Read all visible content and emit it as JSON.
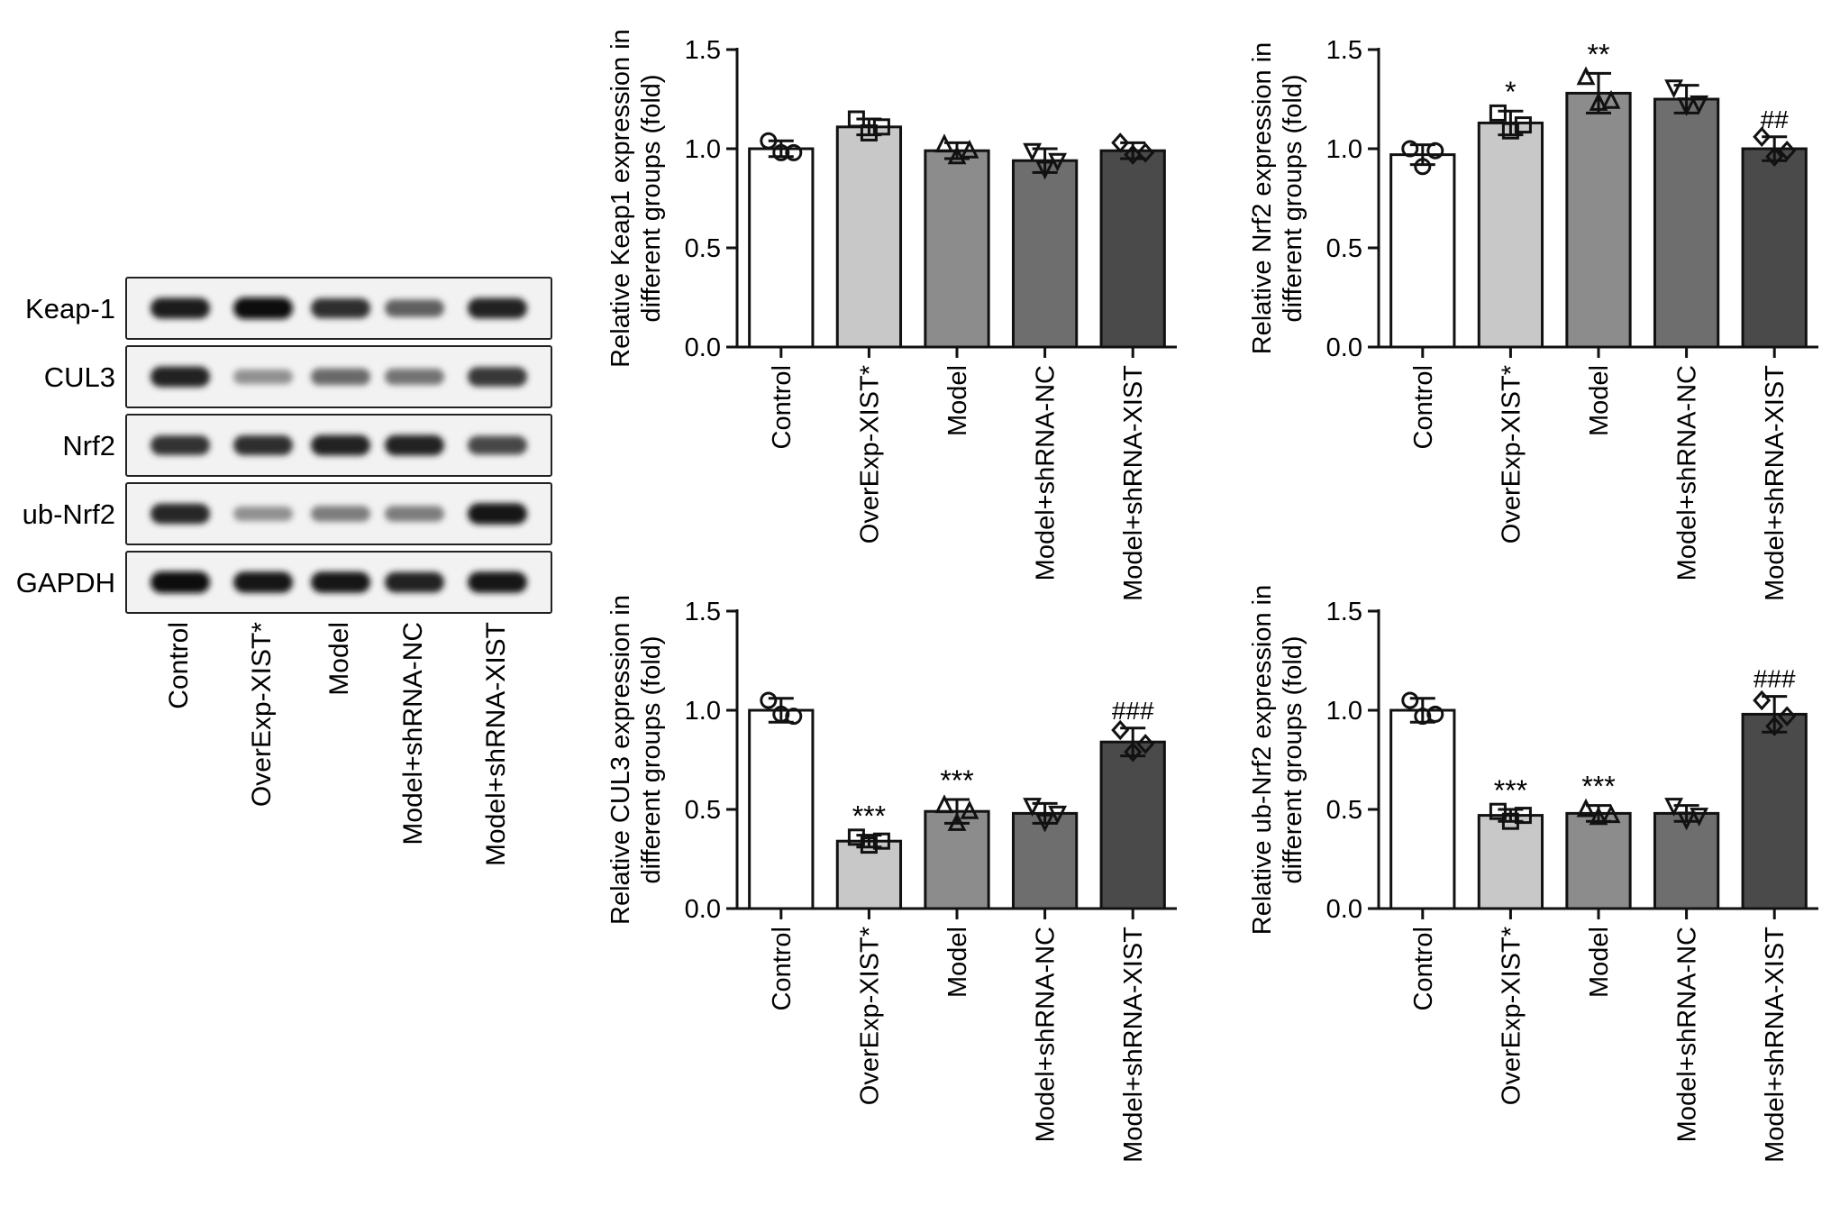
{
  "blot": {
    "bands": [
      {
        "label": "Keap-1",
        "intensities": [
          0.92,
          1.0,
          0.84,
          0.6,
          0.9
        ]
      },
      {
        "label": "CUL3",
        "intensities": [
          0.9,
          0.35,
          0.55,
          0.5,
          0.8
        ]
      },
      {
        "label": "Nrf2",
        "intensities": [
          0.82,
          0.84,
          0.9,
          0.9,
          0.72
        ]
      },
      {
        "label": "ub-Nrf2",
        "intensities": [
          0.88,
          0.35,
          0.45,
          0.45,
          0.95
        ]
      },
      {
        "label": "GAPDH",
        "intensities": [
          1.0,
          0.95,
          0.95,
          0.9,
          0.95
        ]
      }
    ],
    "lanes": [
      "Control",
      "OverExp-XIST*",
      "Model",
      "Model+shRNA-NC",
      "Model+shRNA-XIST"
    ]
  },
  "chart_data": [
    {
      "type": "bar",
      "title": "",
      "ylabel": "Relative Keap1 expression in different groups (fold)",
      "xlabel": "",
      "categories": [
        "Control",
        "OverExp-XIST*",
        "Model",
        "Model+shRNA-NC",
        "Model+shRNA-XIST"
      ],
      "values": [
        1.0,
        1.11,
        0.99,
        0.94,
        0.99
      ],
      "errors": [
        0.04,
        0.04,
        0.04,
        0.06,
        0.04
      ],
      "points": [
        [
          1.04,
          0.98,
          0.98
        ],
        [
          1.15,
          1.08,
          1.11
        ],
        [
          1.02,
          0.96,
          0.99
        ],
        [
          0.99,
          0.9,
          0.94
        ],
        [
          1.03,
          0.97,
          0.98
        ]
      ],
      "annotations": [
        "",
        "",
        "",
        "",
        ""
      ],
      "ylim": [
        0,
        1.5
      ],
      "yticks": [
        "0.0",
        "0.5",
        "1.0",
        "1.5"
      ],
      "colors": [
        "#ffffff",
        "#c8c8c8",
        "#8c8c8c",
        "#6e6e6e",
        "#4a4a4a"
      ]
    },
    {
      "type": "bar",
      "title": "",
      "ylabel": "Relative Nrf2 expression in different groups (fold)",
      "xlabel": "",
      "categories": [
        "Control",
        "OverExp-XIST*",
        "Model",
        "Model+shRNA-NC",
        "Model+shRNA-XIST"
      ],
      "values": [
        0.97,
        1.13,
        1.28,
        1.25,
        1.0
      ],
      "errors": [
        0.05,
        0.06,
        0.1,
        0.07,
        0.06
      ],
      "points": [
        [
          1.0,
          0.91,
          0.99
        ],
        [
          1.18,
          1.09,
          1.12
        ],
        [
          1.36,
          1.23,
          1.24
        ],
        [
          1.31,
          1.22,
          1.23
        ],
        [
          1.06,
          0.96,
          0.99
        ]
      ],
      "annotations": [
        "",
        "*",
        "**",
        "",
        "##"
      ],
      "ylim": [
        0,
        1.5
      ],
      "yticks": [
        "0.0",
        "0.5",
        "1.0",
        "1.5"
      ],
      "colors": [
        "#ffffff",
        "#c8c8c8",
        "#8c8c8c",
        "#6e6e6e",
        "#4a4a4a"
      ]
    },
    {
      "type": "bar",
      "title": "",
      "ylabel": "Relative CUL3 expression in different groups (fold)",
      "xlabel": "",
      "categories": [
        "Control",
        "OverExp-XIST*",
        "Model",
        "Model+shRNA-NC",
        "Model+shRNA-XIST"
      ],
      "values": [
        1.0,
        0.34,
        0.49,
        0.48,
        0.84
      ],
      "errors": [
        0.06,
        0.03,
        0.06,
        0.05,
        0.07
      ],
      "points": [
        [
          1.05,
          0.98,
          0.97
        ],
        [
          0.36,
          0.32,
          0.34
        ],
        [
          0.52,
          0.43,
          0.49
        ],
        [
          0.52,
          0.44,
          0.48
        ],
        [
          0.9,
          0.79,
          0.83
        ]
      ],
      "annotations": [
        "",
        "***",
        "***",
        "",
        "###"
      ],
      "ylim": [
        0,
        1.5
      ],
      "yticks": [
        "0.0",
        "0.5",
        "1.0",
        "1.5"
      ],
      "colors": [
        "#ffffff",
        "#c8c8c8",
        "#8c8c8c",
        "#6e6e6e",
        "#4a4a4a"
      ]
    },
    {
      "type": "bar",
      "title": "",
      "ylabel": "Relative ub-Nrf2 expression in different groups (fold)",
      "xlabel": "",
      "categories": [
        "Control",
        "OverExp-XIST*",
        "Model",
        "Model+shRNA-NC",
        "Model+shRNA-XIST"
      ],
      "values": [
        1.0,
        0.47,
        0.48,
        0.48,
        0.98
      ],
      "errors": [
        0.06,
        0.03,
        0.04,
        0.04,
        0.09
      ],
      "points": [
        [
          1.05,
          0.97,
          0.98
        ],
        [
          0.49,
          0.44,
          0.47
        ],
        [
          0.5,
          0.46,
          0.47
        ],
        [
          0.52,
          0.45,
          0.47
        ],
        [
          1.05,
          0.92,
          0.97
        ]
      ],
      "annotations": [
        "",
        "***",
        "***",
        "",
        "###"
      ],
      "ylim": [
        0,
        1.5
      ],
      "yticks": [
        "0.0",
        "0.5",
        "1.0",
        "1.5"
      ],
      "colors": [
        "#ffffff",
        "#c8c8c8",
        "#8c8c8c",
        "#6e6e6e",
        "#4a4a4a"
      ]
    }
  ]
}
